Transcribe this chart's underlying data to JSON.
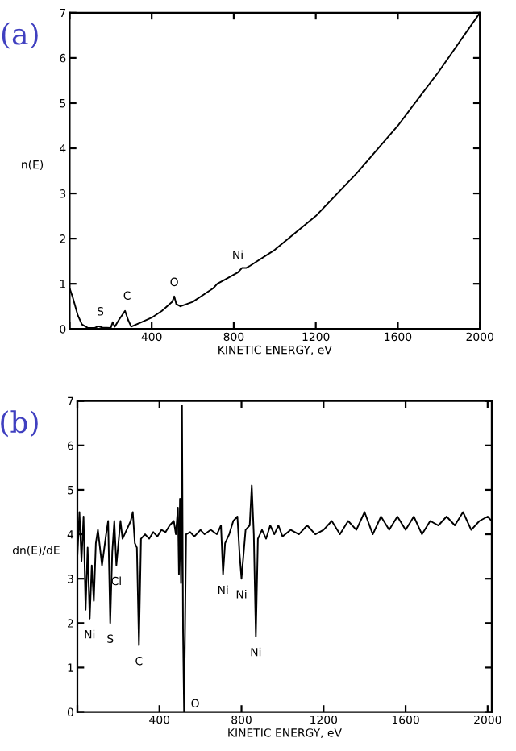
{
  "chart_data": [
    {
      "type": "line",
      "title": "(a)",
      "xlabel": "KINETIC ENERGY, eV",
      "ylabel": "n(E)",
      "x": [
        0,
        15,
        40,
        60,
        90,
        120,
        140,
        160,
        200,
        210,
        220,
        240,
        270,
        285,
        300,
        350,
        400,
        450,
        500,
        510,
        520,
        540,
        600,
        700,
        720,
        760,
        800,
        820,
        840,
        860,
        880,
        1000,
        1200,
        1400,
        1600,
        1800,
        2000
      ],
      "series": [
        {
          "color": "#000000",
          "values": [
            0.9,
            0.7,
            0.3,
            0.1,
            0.02,
            0.02,
            0.06,
            0.03,
            0.02,
            0.15,
            0.05,
            0.2,
            0.4,
            0.2,
            0.05,
            0.15,
            0.25,
            0.4,
            0.6,
            0.72,
            0.55,
            0.5,
            0.6,
            0.9,
            1.0,
            1.1,
            1.2,
            1.25,
            1.35,
            1.35,
            1.4,
            1.75,
            2.5,
            3.45,
            4.5,
            5.7,
            7.0
          ]
        }
      ],
      "xlim": [
        0,
        2000
      ],
      "ylim": [
        0,
        7
      ],
      "xticks": [
        {
          "value": 0,
          "label": null
        },
        400,
        800,
        1200,
        1600,
        2000
      ],
      "yticks": [
        0,
        1,
        2,
        3,
        4,
        5,
        6,
        7
      ],
      "annotations": [
        {
          "text": "S",
          "x": 150,
          "y": 0.15
        },
        {
          "text": "C",
          "x": 280,
          "y": 0.5
        },
        {
          "text": "O",
          "x": 510,
          "y": 0.8
        },
        {
          "text": "Ni",
          "x": 820,
          "y": 1.4
        }
      ],
      "grid": false,
      "legend": false,
      "marker": "none",
      "line_style": "solid"
    },
    {
      "type": "line",
      "title": "(b)",
      "xlabel": "KINETIC ENERGY, eV",
      "ylabel": "dn(E)/dE",
      "x": [
        0,
        10,
        20,
        30,
        40,
        50,
        60,
        70,
        80,
        90,
        100,
        110,
        120,
        140,
        150,
        160,
        170,
        180,
        190,
        200,
        210,
        220,
        240,
        260,
        270,
        280,
        290,
        300,
        310,
        330,
        350,
        370,
        390,
        410,
        430,
        450,
        470,
        480,
        490,
        495,
        500,
        505,
        510,
        515,
        520,
        530,
        550,
        570,
        600,
        620,
        650,
        680,
        700,
        710,
        720,
        740,
        760,
        780,
        790,
        800,
        820,
        840,
        850,
        860,
        870,
        880,
        900,
        920,
        940,
        960,
        980,
        1000,
        1040,
        1080,
        1120,
        1160,
        1200,
        1240,
        1280,
        1320,
        1360,
        1400,
        1440,
        1480,
        1520,
        1560,
        1600,
        1640,
        1680,
        1720,
        1760,
        1800,
        1840,
        1880,
        1920,
        1960,
        2000,
        2020
      ],
      "series": [
        {
          "color": "#000000",
          "values": [
            3.5,
            4.5,
            3.4,
            4.4,
            2.3,
            3.7,
            2.1,
            3.3,
            2.5,
            3.8,
            4.1,
            3.7,
            3.3,
            4.0,
            4.3,
            2.0,
            3.6,
            4.3,
            3.3,
            3.8,
            4.3,
            3.9,
            4.1,
            4.3,
            4.5,
            3.8,
            3.7,
            1.5,
            3.9,
            4.0,
            3.9,
            4.05,
            3.95,
            4.1,
            4.05,
            4.2,
            4.3,
            4.0,
            4.6,
            3.1,
            4.8,
            2.9,
            6.9,
            1.8,
            0.0,
            4.0,
            4.05,
            3.95,
            4.1,
            4.0,
            4.1,
            4.0,
            4.2,
            3.1,
            3.8,
            4.0,
            4.3,
            4.4,
            3.6,
            3.0,
            4.1,
            4.2,
            5.1,
            4.0,
            1.7,
            3.9,
            4.1,
            3.9,
            4.2,
            4.0,
            4.2,
            3.95,
            4.1,
            4.0,
            4.2,
            4.0,
            4.1,
            4.3,
            4.0,
            4.3,
            4.1,
            4.5,
            4.0,
            4.4,
            4.1,
            4.4,
            4.1,
            4.4,
            4.0,
            4.3,
            4.2,
            4.4,
            4.2,
            4.5,
            4.1,
            4.3,
            4.4,
            4.3
          ]
        }
      ],
      "xlim": [
        0,
        2020
      ],
      "ylim": [
        0,
        7
      ],
      "xticks": [
        {
          "value": 0,
          "label": null
        },
        400,
        800,
        1200,
        1600,
        2000
      ],
      "yticks": [
        0,
        1,
        2,
        3,
        4,
        5,
        6,
        7
      ],
      "annotations": [
        {
          "text": "Ni",
          "x": 60,
          "y": 2.1
        },
        {
          "text": "S",
          "x": 160,
          "y": 2.0
        },
        {
          "text": "Cl",
          "x": 190,
          "y": 3.3
        },
        {
          "text": "C",
          "x": 300,
          "y": 1.5
        },
        {
          "text": "O",
          "x": 520,
          "y": 0.0
        },
        {
          "text": "Ni",
          "x": 710,
          "y": 3.1
        },
        {
          "text": "Ni",
          "x": 800,
          "y": 3.0
        },
        {
          "text": "Ni",
          "x": 870,
          "y": 1.7
        }
      ],
      "grid": false,
      "legend": false,
      "marker": "none",
      "line_style": "solid"
    }
  ]
}
